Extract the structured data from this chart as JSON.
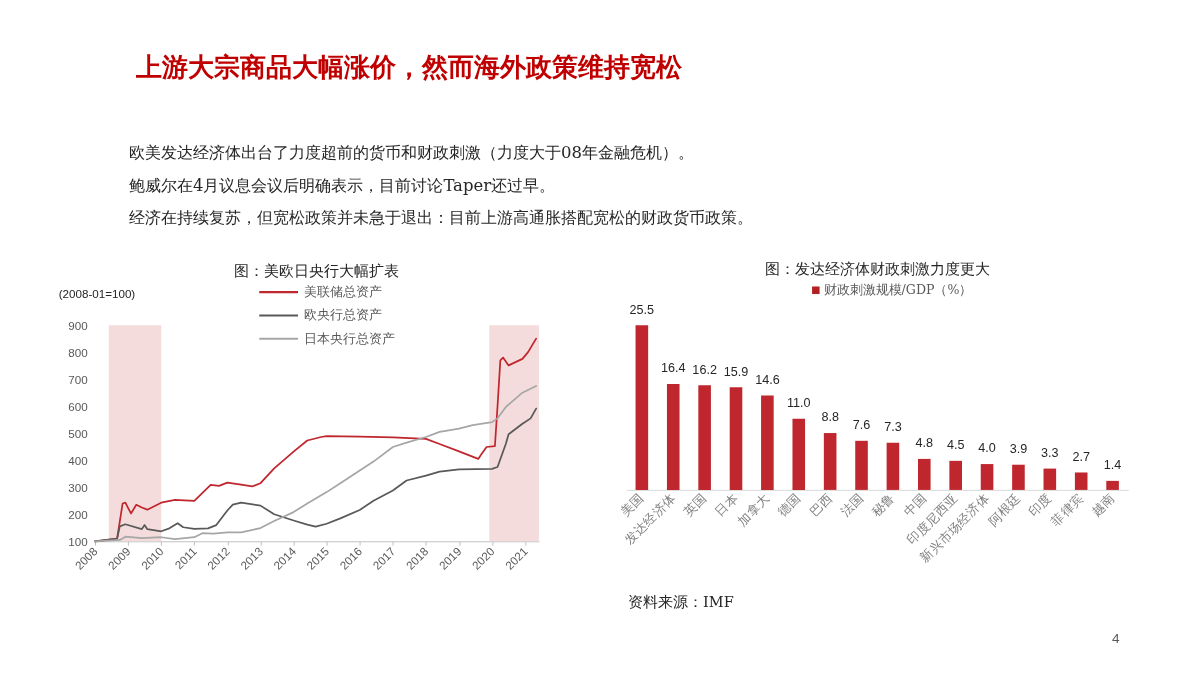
{
  "chart_data": [
    {
      "type": "other",
      "title": "上游大宗商品大幅涨价，然而海外政策维持宽松",
      "annotations": [
        "欧美发达经济体出台了力度超前的货币和财政刺激（力度大于08年金融危机）。",
        "鲍威尔在4月议息会议后明确表示，目前讨论Taper还过早。",
        "经济在持续复苏，但宽松政策并未急于退出：目前上游高通胀搭配宽松的财政货币政策。",
        "4"
      ]
    },
    {
      "type": "line",
      "title": "图：美欧日央行大幅扩表",
      "ylabel": "(2008-01=100)",
      "xlim": [
        "2008-01",
        "2021-06"
      ],
      "ylim": [
        100,
        900
      ],
      "xticks": [
        "2008",
        "2009",
        "2010",
        "2011",
        "2012",
        "2013",
        "2014",
        "2015",
        "2016",
        "2017",
        "2018",
        "2019",
        "2020",
        "2021"
      ],
      "yticks": [
        100,
        200,
        300,
        400,
        500,
        600,
        700,
        800,
        900
      ],
      "grid": false,
      "legend": "top",
      "line_style": "solid",
      "bands": [
        {
          "axis": "x",
          "from": "2008-06",
          "to": "2010-01",
          "color": "#f5dcdc"
        },
        {
          "axis": "x",
          "from": "2019-12",
          "to": "2021-06",
          "color": "#f5dcdc"
        }
      ],
      "series": [
        {
          "name": "美联储总资产",
          "color": "#c0262d",
          "x": [
            "2008-01",
            "2008-09",
            "2008-11",
            "2008-12",
            "2009-02",
            "2009-04",
            "2009-06",
            "2009-08",
            "2010-01",
            "2010-06",
            "2011-01",
            "2011-07",
            "2011-10",
            "2012-01",
            "2012-06",
            "2012-10",
            "2013-01",
            "2013-06",
            "2014-01",
            "2014-06",
            "2014-11",
            "2015-01",
            "2016-01",
            "2017-01",
            "2018-01",
            "2018-06",
            "2019-01",
            "2019-08",
            "2019-09",
            "2019-11",
            "2020-02",
            "2020-03",
            "2020-04",
            "2020-05",
            "2020-07",
            "2020-12",
            "2021-02",
            "2021-05"
          ],
          "values": [
            100,
            110,
            240,
            243,
            203,
            235,
            225,
            217,
            243,
            253,
            250,
            309,
            305,
            317,
            310,
            303,
            315,
            370,
            432,
            473,
            486,
            489,
            487,
            485,
            479,
            460,
            433,
            405,
            420,
            449,
            452,
            600,
            770,
            780,
            751,
            775,
            800,
            850
          ]
        },
        {
          "name": "欧央行总资产",
          "color": "#595959",
          "x": [
            "2008-01",
            "2008-09",
            "2008-10",
            "2008-12",
            "2009-06",
            "2009-07",
            "2009-08",
            "2010-01",
            "2010-04",
            "2010-07",
            "2010-09",
            "2011-01",
            "2011-06",
            "2011-09",
            "2012-01",
            "2012-03",
            "2012-06",
            "2013-01",
            "2013-06",
            "2014-01",
            "2014-06",
            "2014-09",
            "2015-01",
            "2015-06",
            "2016-01",
            "2016-06",
            "2017-01",
            "2017-06",
            "2018-01",
            "2018-06",
            "2019-01",
            "2020-01",
            "2020-03",
            "2020-06",
            "2020-07",
            "2020-12",
            "2021-03",
            "2021-05"
          ],
          "values": [
            100,
            110,
            155,
            163,
            145,
            160,
            145,
            137,
            148,
            167,
            152,
            146,
            148,
            160,
            214,
            236,
            243,
            232,
            200,
            177,
            162,
            154,
            165,
            185,
            216,
            250,
            288,
            325,
            343,
            358,
            366,
            368,
            375,
            461,
            496,
            535,
            555,
            591
          ]
        },
        {
          "name": "日本央行总资产",
          "color": "#a6a6a6",
          "x": [
            "2008-01",
            "2008-10",
            "2008-12",
            "2009-06",
            "2010-01",
            "2010-06",
            "2011-01",
            "2011-04",
            "2011-08",
            "2012-01",
            "2012-06",
            "2013-01",
            "2013-06",
            "2014-01",
            "2014-06",
            "2015-01",
            "2015-06",
            "2016-01",
            "2016-06",
            "2017-01",
            "2017-06",
            "2018-01",
            "2018-06",
            "2019-01",
            "2019-06",
            "2020-01",
            "2020-03",
            "2020-06",
            "2020-12",
            "2021-05"
          ],
          "values": [
            100,
            105,
            117,
            112,
            115,
            108,
            115,
            130,
            128,
            133,
            133,
            149,
            175,
            208,
            240,
            282,
            315,
            362,
            395,
            449,
            465,
            486,
            505,
            517,
            530,
            541,
            555,
            597,
            650,
            675
          ]
        }
      ]
    },
    {
      "type": "bar",
      "title": "图：发达经济体财政刺激力度更大",
      "categories": [
        "美国",
        "发达经济体",
        "英国",
        "日本",
        "加拿大",
        "德国",
        "巴西",
        "法国",
        "秘鲁",
        "中国",
        "印度尼西亚",
        "新兴市场经济体",
        "阿根廷",
        "印度",
        "菲律宾",
        "越南"
      ],
      "legend": "top",
      "tick_labels": "x",
      "grid": false,
      "annotations": [
        "资料来源：IMF"
      ],
      "series": [
        {
          "name": "财政刺激规模/GDP（%）",
          "color": "#b41f1f",
          "values": [
            25.5,
            16.4,
            16.2,
            15.9,
            14.6,
            11.0,
            8.8,
            7.6,
            7.3,
            4.8,
            4.5,
            4.0,
            3.9,
            3.3,
            2.7,
            1.4
          ],
          "value_labels": [
            "25.5",
            "16.4",
            "16.2",
            "15.9",
            "14.6",
            "11.0",
            "8.8",
            "7.6",
            "7.3",
            "4.8",
            "4.5",
            "4.0",
            "3.9",
            "3.3",
            "2.7",
            "1.4"
          ]
        }
      ]
    }
  ]
}
